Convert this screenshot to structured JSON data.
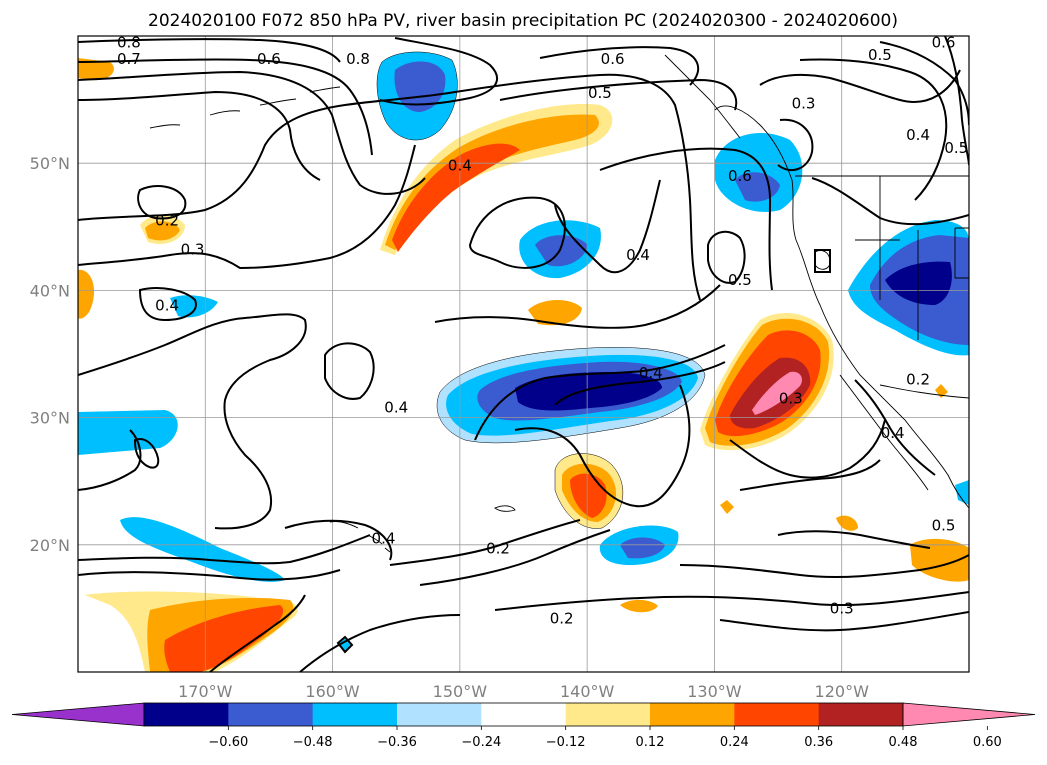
{
  "title": "2024020100 F072 850 hPa PV, river basin precipitation PC (2024020300 - 2024020600)",
  "map": {
    "lon_range": [
      -180,
      -110
    ],
    "lat_range": [
      10,
      60
    ],
    "lon_ticks": [
      {
        "lon": -170,
        "label": "170°W"
      },
      {
        "lon": -160,
        "label": "160°W"
      },
      {
        "lon": -150,
        "label": "150°W"
      },
      {
        "lon": -140,
        "label": "140°W"
      },
      {
        "lon": -130,
        "label": "130°W"
      },
      {
        "lon": -120,
        "label": "120°W"
      }
    ],
    "lat_ticks": [
      {
        "lat": 20,
        "label": "20°N"
      },
      {
        "lat": 30,
        "label": "30°N"
      },
      {
        "lat": 40,
        "label": "40°N"
      },
      {
        "lat": 50,
        "label": "50°N"
      }
    ],
    "grid": true
  },
  "colorbar": {
    "colors": [
      "#9932cc",
      "#00008b",
      "#3b5bd1",
      "#00bfff",
      "#b0e2ff",
      "#ffffff",
      "#ffe98a",
      "#ffa500",
      "#ff4500",
      "#b22222",
      "#ff89b0"
    ],
    "ticks": [
      "−0.60",
      "−0.48",
      "−0.36",
      "−0.24",
      "−0.12",
      "0.12",
      "0.24",
      "0.36",
      "0.48",
      "0.60"
    ],
    "extend": "both"
  },
  "contour_labels": [
    {
      "text": "0.8",
      "lon": -176,
      "lat": 59.5
    },
    {
      "text": "0.7",
      "lon": -176,
      "lat": 58.2
    },
    {
      "text": "0.6",
      "lon": -165,
      "lat": 58.2
    },
    {
      "text": "0.8",
      "lon": -158,
      "lat": 58.2
    },
    {
      "text": "0.6",
      "lon": -138,
      "lat": 58.2
    },
    {
      "text": "0.5",
      "lon": -139,
      "lat": 55.5
    },
    {
      "text": "0.3",
      "lon": -123,
      "lat": 54.7
    },
    {
      "text": "0.5",
      "lon": -117,
      "lat": 58.5
    },
    {
      "text": "0.6",
      "lon": -112,
      "lat": 59.5
    },
    {
      "text": "0.4",
      "lon": -114,
      "lat": 52.2
    },
    {
      "text": "0.5",
      "lon": -111,
      "lat": 51.2
    },
    {
      "text": "0.4",
      "lon": -150,
      "lat": 49.8
    },
    {
      "text": "0.2",
      "lon": -173,
      "lat": 45.5
    },
    {
      "text": "0.3",
      "lon": -171,
      "lat": 43.2
    },
    {
      "text": "0.6",
      "lon": -128,
      "lat": 49.0
    },
    {
      "text": "0.4",
      "lon": -136,
      "lat": 42.8
    },
    {
      "text": "0.5",
      "lon": -128,
      "lat": 40.8
    },
    {
      "text": "0.4",
      "lon": -173,
      "lat": 38.8
    },
    {
      "text": "0.4",
      "lon": -155,
      "lat": 30.8
    },
    {
      "text": "0.4",
      "lon": -135,
      "lat": 33.5
    },
    {
      "text": "0.3",
      "lon": -124,
      "lat": 31.5
    },
    {
      "text": "0.2",
      "lon": -114,
      "lat": 33.0
    },
    {
      "text": "0.4",
      "lon": -116,
      "lat": 28.8
    },
    {
      "text": "0.5",
      "lon": -112,
      "lat": 21.5
    },
    {
      "text": "0.4",
      "lon": -156,
      "lat": 20.5
    },
    {
      "text": "0.2",
      "lon": -147,
      "lat": 19.7
    },
    {
      "text": "0.2",
      "lon": -142,
      "lat": 14.2
    },
    {
      "text": "0.3",
      "lon": -120,
      "lat": 15.0
    }
  ]
}
